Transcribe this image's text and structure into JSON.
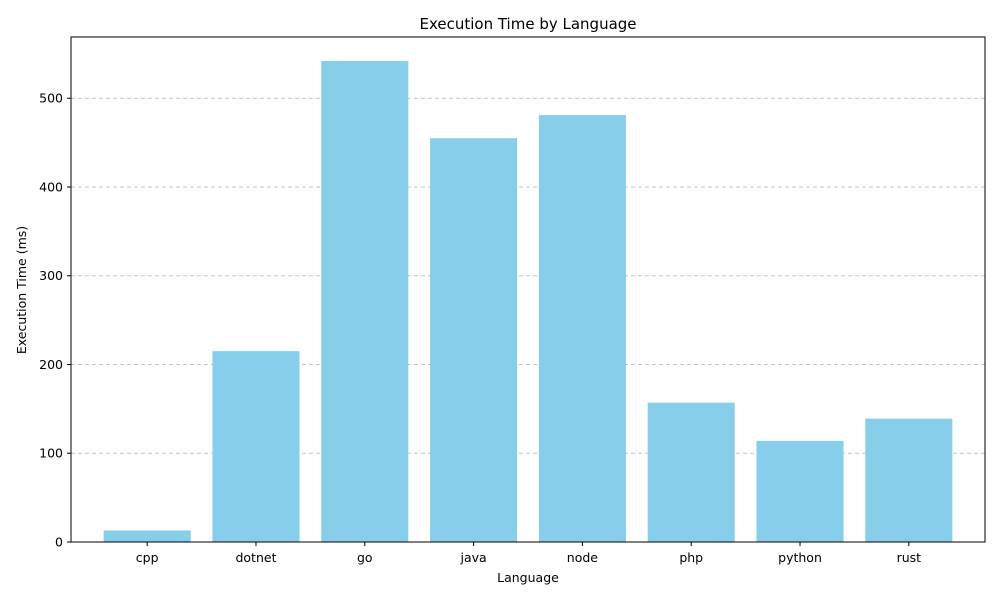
{
  "chart_data": {
    "type": "bar",
    "title": "Execution Time by Language",
    "xlabel": "Language",
    "ylabel": "Execution Time (ms)",
    "categories": [
      "cpp",
      "dotnet",
      "go",
      "java",
      "node",
      "php",
      "python",
      "rust"
    ],
    "values": [
      13,
      215,
      542,
      455,
      481,
      157,
      114,
      139
    ],
    "ylim": [
      0,
      569
    ],
    "yticks": [
      0,
      100,
      200,
      300,
      400,
      500
    ],
    "grid": "y-dashed",
    "bar_color": "#87CEEB"
  }
}
